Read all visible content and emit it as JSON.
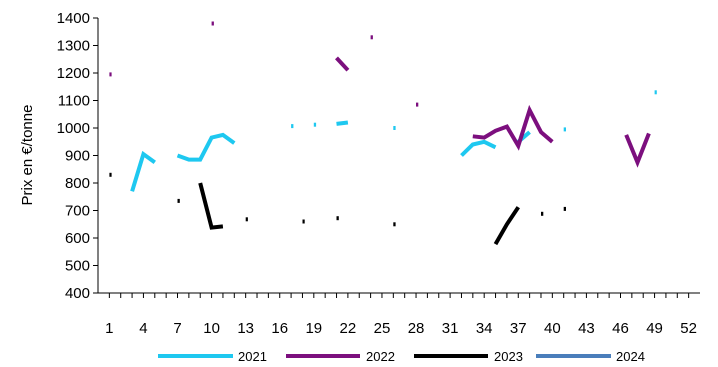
{
  "chart_data": {
    "type": "line",
    "title": "",
    "xlabel": "",
    "ylabel": "Prix en €/tonne",
    "xlim": [
      0,
      53
    ],
    "ylim": [
      400,
      1400
    ],
    "x_ticks": [
      1,
      4,
      7,
      10,
      13,
      16,
      19,
      22,
      25,
      28,
      31,
      34,
      37,
      40,
      43,
      46,
      49,
      52
    ],
    "y_ticks": [
      400,
      500,
      600,
      700,
      800,
      900,
      1000,
      1100,
      1200,
      1300,
      1400
    ],
    "grid": false,
    "legend_position": "bottom",
    "series": [
      {
        "name": "2021",
        "color": "#1ec8f0",
        "values": [
          [
            3,
            770
          ],
          [
            4,
            905
          ],
          [
            5,
            875
          ],
          [
            6,
            null
          ],
          [
            7,
            900
          ],
          [
            8,
            885
          ],
          [
            9,
            885
          ],
          [
            10,
            965
          ],
          [
            11,
            975
          ],
          [
            12,
            945
          ],
          [
            13,
            null
          ],
          [
            17,
            1007
          ],
          [
            17.2,
            1007
          ],
          [
            17.3,
            null
          ],
          [
            19,
            1012
          ],
          [
            19.2,
            1012
          ],
          [
            19.3,
            null
          ],
          [
            21,
            1015
          ],
          [
            22,
            1020
          ],
          [
            22.1,
            null
          ],
          [
            26,
            1000
          ],
          [
            26.2,
            1000
          ],
          [
            26.3,
            null
          ],
          [
            32,
            900
          ],
          [
            33,
            940
          ],
          [
            34,
            950
          ],
          [
            35,
            930
          ],
          [
            35.1,
            null
          ],
          [
            37,
            950
          ],
          [
            38,
            985
          ],
          [
            38.1,
            null
          ],
          [
            41,
            995
          ],
          [
            41.2,
            995
          ],
          [
            41.3,
            null
          ],
          [
            49,
            1130
          ],
          [
            49.2,
            1130
          ]
        ]
      },
      {
        "name": "2022",
        "color": "#7c0f7e",
        "values": [
          [
            1,
            1195
          ],
          [
            1.2,
            1195
          ],
          [
            1.3,
            null
          ],
          [
            10,
            1380
          ],
          [
            10.2,
            1380
          ],
          [
            10.3,
            null
          ],
          [
            21,
            1255
          ],
          [
            22,
            1210
          ],
          [
            22.1,
            null
          ],
          [
            24,
            1330
          ],
          [
            24.2,
            1330
          ],
          [
            24.3,
            null
          ],
          [
            28,
            1085
          ],
          [
            28.2,
            1085
          ],
          [
            28.3,
            null
          ],
          [
            33,
            970
          ],
          [
            34,
            965
          ],
          [
            35,
            990
          ],
          [
            36,
            1005
          ],
          [
            37,
            935
          ],
          [
            38,
            1065
          ],
          [
            39,
            985
          ],
          [
            40,
            950
          ],
          [
            40.1,
            null
          ],
          [
            46.5,
            975
          ],
          [
            47.5,
            875
          ],
          [
            48.5,
            980
          ]
        ]
      },
      {
        "name": "2023",
        "color": "#000000",
        "values": [
          [
            1,
            830
          ],
          [
            1.2,
            830
          ],
          [
            1.3,
            null
          ],
          [
            7,
            735
          ],
          [
            7.2,
            735
          ],
          [
            7.3,
            null
          ],
          [
            9,
            800
          ],
          [
            10,
            638
          ],
          [
            11,
            642
          ],
          [
            11.1,
            null
          ],
          [
            13,
            668
          ],
          [
            13.2,
            668
          ],
          [
            13.3,
            null
          ],
          [
            18,
            660
          ],
          [
            18.2,
            660
          ],
          [
            18.3,
            null
          ],
          [
            21,
            672
          ],
          [
            21.2,
            672
          ],
          [
            21.3,
            null
          ],
          [
            26,
            650
          ],
          [
            26.2,
            650
          ],
          [
            26.3,
            null
          ],
          [
            35,
            578
          ],
          [
            36,
            650
          ],
          [
            37,
            712
          ],
          [
            37.1,
            null
          ],
          [
            39,
            688
          ],
          [
            39.2,
            688
          ],
          [
            39.3,
            null
          ],
          [
            41,
            706
          ],
          [
            41.2,
            706
          ]
        ]
      },
      {
        "name": "2024",
        "color": "#4a7ebb",
        "values": []
      }
    ]
  }
}
